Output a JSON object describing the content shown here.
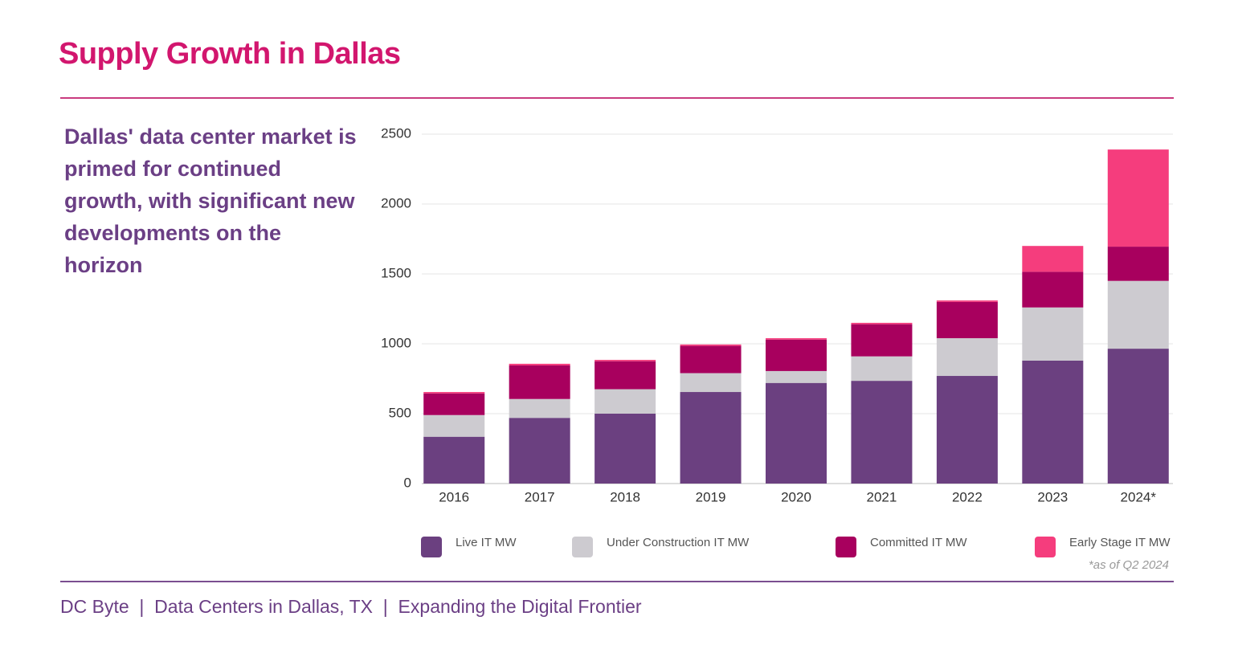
{
  "header": {
    "title": "Supply Growth in Dallas"
  },
  "subtitle": "Dallas' data center market is primed for continued growth, with significant new developments on the horizon",
  "chart_data": {
    "type": "stacked_bar",
    "categories": [
      "2016",
      "2017",
      "2018",
      "2019",
      "2020",
      "2021",
      "2022",
      "2023",
      "2024*"
    ],
    "series": [
      {
        "name": "Live IT MW",
        "color": "#6b4080",
        "values": [
          335,
          470,
          500,
          655,
          720,
          735,
          770,
          880,
          965
        ]
      },
      {
        "name": "Under Construction IT MW",
        "color": "#cdcbd0",
        "values": [
          155,
          135,
          175,
          135,
          85,
          175,
          270,
          380,
          485
        ]
      },
      {
        "name": "Committed IT MW",
        "color": "#a8005e",
        "values": [
          155,
          240,
          200,
          195,
          225,
          230,
          260,
          255,
          245
        ]
      },
      {
        "name": "Early Stage IT MW",
        "color": "#f53d7d",
        "values": [
          10,
          12,
          10,
          10,
          10,
          10,
          10,
          185,
          695
        ]
      }
    ],
    "ylim": [
      0,
      2500
    ],
    "yticks": [
      0,
      500,
      1000,
      1500,
      2000,
      2500
    ],
    "grid": true
  },
  "note": "*as of Q2 2024",
  "footer": "DC Byte  |  Data Centers in Dallas, TX  |  Expanding the Digital Frontier"
}
